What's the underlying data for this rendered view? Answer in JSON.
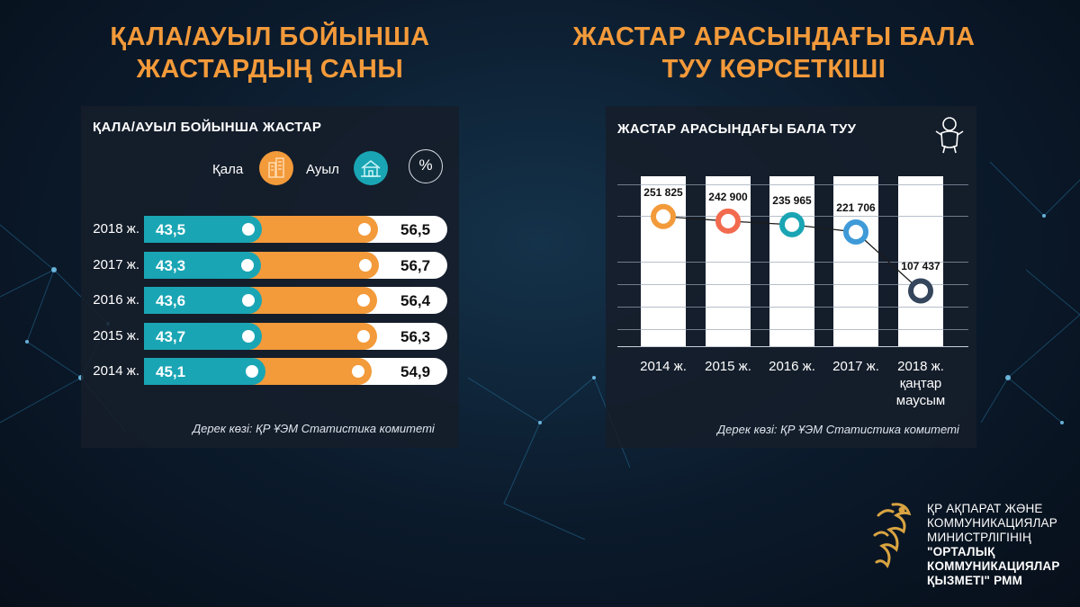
{
  "headings": {
    "left": [
      "ҚАЛА/АУЫЛ БОЙЫНША",
      "ЖАСТАРДЫҢ САНЫ"
    ],
    "right": [
      "ЖАСТАР АРАСЫНДАҒЫ БАЛА",
      "ТУУ КӨРСЕТКІШІ"
    ]
  },
  "colors": {
    "accent": "#f39a3a",
    "teal": "#1aa5b4",
    "panel": "#161e2a"
  },
  "chart_data": [
    {
      "type": "bar",
      "orientation": "horizontal-stacked",
      "title": "ҚАЛА/АУЫЛ БОЙЫНША ЖАСТАР",
      "legend": {
        "city_label": "Қала",
        "village_label": "Ауыл",
        "percent_symbol": "%"
      },
      "categories": [
        "2018 ж.",
        "2017 ж.",
        "2016 ж.",
        "2015 ж.",
        "2014 ж."
      ],
      "series": [
        {
          "name": "Ауыл",
          "values": [
            43.5,
            43.3,
            43.6,
            43.7,
            45.1
          ],
          "labels": [
            "43,5",
            "43,3",
            "43,6",
            "43,7",
            "45,1"
          ]
        },
        {
          "name": "Қала",
          "values": [
            56.5,
            56.7,
            56.4,
            56.3,
            54.9
          ],
          "labels": [
            "56,5",
            "56,7",
            "56,4",
            "56,3",
            "54,9"
          ]
        }
      ],
      "unit": "%",
      "xlim": [
        0,
        100
      ],
      "source": "Дерек көзі: ҚР ҰЭМ Статистика комитеті"
    },
    {
      "type": "line",
      "title": "ЖАСТАР АРАСЫНДАҒЫ БАЛА ТУУ",
      "categories": [
        [
          "2014 ж."
        ],
        [
          "2015 ж."
        ],
        [
          "2016 ж."
        ],
        [
          "2017 ж."
        ],
        [
          "2018 ж.",
          "қаңтар",
          "маусым"
        ]
      ],
      "values": [
        251825,
        242900,
        235965,
        221706,
        107437
      ],
      "labels": [
        "251 825",
        "242 900",
        "235 965",
        "221 706",
        "107 437"
      ],
      "point_colors": [
        "#f39a3a",
        "#f26b4f",
        "#1aa5b4",
        "#3f9ad8",
        "#34455c"
      ],
      "ylim": [
        0,
        330000
      ],
      "grid": true,
      "source": "Дерек көзі: ҚР ҰЭМ Статистика комитеті"
    }
  ],
  "logo": {
    "lines": [
      "ҚР АҚПАРАТ ЖӘНЕ",
      "КОММУНИКАЦИЯЛАР",
      "МИНИСТРЛІГІНІҢ",
      "\"ОРТАЛЫҚ",
      "КОММУНИКАЦИЯЛАР",
      "ҚЫЗМЕТІ\" РММ"
    ]
  }
}
